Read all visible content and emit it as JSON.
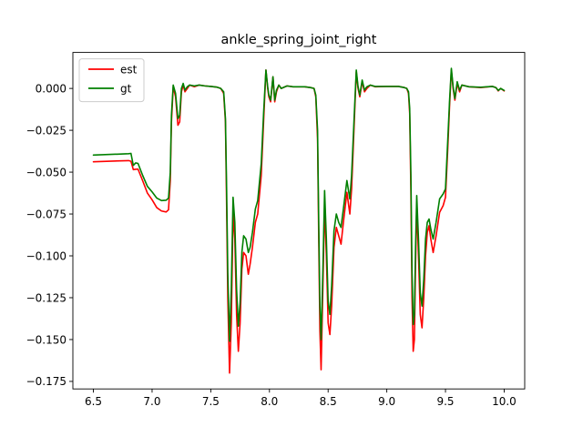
{
  "chart_data": {
    "type": "line",
    "title": "ankle_spring_joint_right",
    "xlabel": "",
    "ylabel": "",
    "xlim": [
      6.325,
      10.175
    ],
    "ylim": [
      -0.1795,
      0.0215
    ],
    "xticks": [
      6.5,
      7.0,
      7.5,
      8.0,
      8.5,
      9.0,
      9.5,
      10.0
    ],
    "xtick_labels": [
      "6.5",
      "7.0",
      "7.5",
      "8.0",
      "8.5",
      "9.0",
      "9.5",
      "10.0"
    ],
    "yticks": [
      0.0,
      -0.025,
      -0.05,
      -0.075,
      -0.1,
      -0.125,
      -0.15,
      -0.175
    ],
    "ytick_labels": [
      "0.000",
      "−0.025",
      "−0.050",
      "−0.075",
      "−0.100",
      "−0.125",
      "−0.150",
      "−0.175"
    ],
    "grid": false,
    "legend": "top-left",
    "series": [
      {
        "name": "est",
        "color": "#ff0000",
        "points": [
          [
            6.5,
            -0.0438
          ],
          [
            6.8,
            -0.0431
          ],
          [
            6.82,
            -0.0435
          ],
          [
            6.84,
            -0.0485
          ],
          [
            6.86,
            -0.0483
          ],
          [
            6.88,
            -0.0482
          ],
          [
            6.92,
            -0.0552
          ],
          [
            6.96,
            -0.0625
          ],
          [
            7.0,
            -0.0665
          ],
          [
            7.04,
            -0.0712
          ],
          [
            7.08,
            -0.0732
          ],
          [
            7.12,
            -0.0738
          ],
          [
            7.14,
            -0.0725
          ],
          [
            7.155,
            -0.055
          ],
          [
            7.165,
            -0.02
          ],
          [
            7.18,
            0.001
          ],
          [
            7.2,
            -0.005
          ],
          [
            7.22,
            -0.022
          ],
          [
            7.235,
            -0.02
          ],
          [
            7.25,
            -0.002
          ],
          [
            7.265,
            0.002
          ],
          [
            7.28,
            -0.002
          ],
          [
            7.3,
            0.0
          ],
          [
            7.32,
            0.002
          ],
          [
            7.36,
            0.001
          ],
          [
            7.4,
            0.002
          ],
          [
            7.45,
            0.0015
          ],
          [
            7.5,
            0.0012
          ],
          [
            7.55,
            0.0008
          ],
          [
            7.585,
            0.0
          ],
          [
            7.61,
            -0.003
          ],
          [
            7.625,
            -0.02
          ],
          [
            7.635,
            -0.07
          ],
          [
            7.645,
            -0.125
          ],
          [
            7.66,
            -0.17
          ],
          [
            7.675,
            -0.14
          ],
          [
            7.69,
            -0.075
          ],
          [
            7.705,
            -0.09
          ],
          [
            7.72,
            -0.135
          ],
          [
            7.735,
            -0.157
          ],
          [
            7.75,
            -0.14
          ],
          [
            7.765,
            -0.108
          ],
          [
            7.78,
            -0.098
          ],
          [
            7.8,
            -0.1
          ],
          [
            7.82,
            -0.111
          ],
          [
            7.835,
            -0.105
          ],
          [
            7.855,
            -0.095
          ],
          [
            7.88,
            -0.08
          ],
          [
            7.9,
            -0.075
          ],
          [
            7.93,
            -0.052
          ],
          [
            7.95,
            -0.02
          ],
          [
            7.97,
            0.011
          ],
          [
            7.985,
            0.0
          ],
          [
            7.995,
            -0.005
          ],
          [
            8.01,
            -0.008
          ],
          [
            8.03,
            0.007
          ],
          [
            8.045,
            -0.008
          ],
          [
            8.06,
            -0.002
          ],
          [
            8.08,
            0.002
          ],
          [
            8.1,
            0.0
          ],
          [
            8.15,
            0.0015
          ],
          [
            8.2,
            0.001
          ],
          [
            8.3,
            0.001
          ],
          [
            8.35,
            0.0005
          ],
          [
            8.38,
            0.0
          ],
          [
            8.395,
            -0.005
          ],
          [
            8.41,
            -0.03
          ],
          [
            8.42,
            -0.09
          ],
          [
            8.43,
            -0.145
          ],
          [
            8.44,
            -0.168
          ],
          [
            8.455,
            -0.12
          ],
          [
            8.47,
            -0.07
          ],
          [
            8.485,
            -0.1
          ],
          [
            8.5,
            -0.14
          ],
          [
            8.515,
            -0.147
          ],
          [
            8.53,
            -0.13
          ],
          [
            8.55,
            -0.095
          ],
          [
            8.57,
            -0.083
          ],
          [
            8.59,
            -0.088
          ],
          [
            8.61,
            -0.093
          ],
          [
            8.63,
            -0.08
          ],
          [
            8.66,
            -0.062
          ],
          [
            8.685,
            -0.075
          ],
          [
            8.7,
            -0.06
          ],
          [
            8.72,
            -0.025
          ],
          [
            8.74,
            0.01
          ],
          [
            8.755,
            0.0
          ],
          [
            8.77,
            -0.005
          ],
          [
            8.79,
            0.004
          ],
          [
            8.81,
            -0.002
          ],
          [
            8.83,
            0.0
          ],
          [
            8.86,
            0.002
          ],
          [
            8.9,
            0.001
          ],
          [
            9.0,
            0.0012
          ],
          [
            9.1,
            0.0012
          ],
          [
            9.15,
            0.0005
          ],
          [
            9.17,
            0.0
          ],
          [
            9.185,
            -0.003
          ],
          [
            9.195,
            -0.015
          ],
          [
            9.205,
            -0.06
          ],
          [
            9.215,
            -0.125
          ],
          [
            9.225,
            -0.157
          ],
          [
            9.235,
            -0.15
          ],
          [
            9.245,
            -0.105
          ],
          [
            9.255,
            -0.07
          ],
          [
            9.27,
            -0.1
          ],
          [
            9.285,
            -0.135
          ],
          [
            9.3,
            -0.143
          ],
          [
            9.315,
            -0.125
          ],
          [
            9.33,
            -0.1
          ],
          [
            9.345,
            -0.086
          ],
          [
            9.36,
            -0.082
          ],
          [
            9.375,
            -0.09
          ],
          [
            9.395,
            -0.098
          ],
          [
            9.42,
            -0.088
          ],
          [
            9.45,
            -0.074
          ],
          [
            9.48,
            -0.07
          ],
          [
            9.5,
            -0.065
          ],
          [
            9.52,
            -0.035
          ],
          [
            9.535,
            -0.01
          ],
          [
            9.55,
            0.011
          ],
          [
            9.565,
            0.0
          ],
          [
            9.58,
            -0.007
          ],
          [
            9.6,
            0.003
          ],
          [
            9.62,
            -0.002
          ],
          [
            9.64,
            0.002
          ],
          [
            9.7,
            0.001
          ],
          [
            9.8,
            0.0005
          ],
          [
            9.9,
            0.0012
          ],
          [
            9.93,
            0.0005
          ],
          [
            9.95,
            -0.0015
          ],
          [
            9.97,
            0.0
          ],
          [
            10.0,
            -0.0015
          ]
        ]
      },
      {
        "name": "gt",
        "color": "#008000",
        "points": [
          [
            6.5,
            -0.0398
          ],
          [
            6.8,
            -0.039
          ],
          [
            6.82,
            -0.0388
          ],
          [
            6.84,
            -0.046
          ],
          [
            6.86,
            -0.0445
          ],
          [
            6.88,
            -0.0448
          ],
          [
            6.92,
            -0.052
          ],
          [
            6.96,
            -0.0585
          ],
          [
            7.0,
            -0.0618
          ],
          [
            7.04,
            -0.0655
          ],
          [
            7.08,
            -0.067
          ],
          [
            7.12,
            -0.0668
          ],
          [
            7.14,
            -0.0655
          ],
          [
            7.155,
            -0.05
          ],
          [
            7.165,
            -0.016
          ],
          [
            7.18,
            0.002
          ],
          [
            7.2,
            -0.003
          ],
          [
            7.22,
            -0.018
          ],
          [
            7.235,
            -0.016
          ],
          [
            7.25,
            0.0
          ],
          [
            7.265,
            0.003
          ],
          [
            7.28,
            -0.001
          ],
          [
            7.3,
            0.001
          ],
          [
            7.32,
            0.002
          ],
          [
            7.36,
            0.0015
          ],
          [
            7.4,
            0.002
          ],
          [
            7.45,
            0.0015
          ],
          [
            7.5,
            0.0012
          ],
          [
            7.55,
            0.0008
          ],
          [
            7.585,
            0.0
          ],
          [
            7.61,
            -0.002
          ],
          [
            7.625,
            -0.018
          ],
          [
            7.635,
            -0.06
          ],
          [
            7.645,
            -0.11
          ],
          [
            7.66,
            -0.151
          ],
          [
            7.675,
            -0.12
          ],
          [
            7.69,
            -0.065
          ],
          [
            7.705,
            -0.08
          ],
          [
            7.72,
            -0.12
          ],
          [
            7.735,
            -0.142
          ],
          [
            7.75,
            -0.128
          ],
          [
            7.765,
            -0.098
          ],
          [
            7.78,
            -0.088
          ],
          [
            7.8,
            -0.09
          ],
          [
            7.82,
            -0.098
          ],
          [
            7.835,
            -0.095
          ],
          [
            7.855,
            -0.086
          ],
          [
            7.88,
            -0.072
          ],
          [
            7.9,
            -0.067
          ],
          [
            7.93,
            -0.045
          ],
          [
            7.95,
            -0.015
          ],
          [
            7.97,
            0.011
          ],
          [
            7.985,
            0.001
          ],
          [
            7.995,
            -0.004
          ],
          [
            8.01,
            -0.007
          ],
          [
            8.03,
            0.007
          ],
          [
            8.045,
            -0.007
          ],
          [
            8.06,
            -0.001
          ],
          [
            8.08,
            0.002
          ],
          [
            8.1,
            0.0
          ],
          [
            8.15,
            0.0015
          ],
          [
            8.2,
            0.001
          ],
          [
            8.3,
            0.001
          ],
          [
            8.35,
            0.0005
          ],
          [
            8.38,
            0.0
          ],
          [
            8.395,
            -0.004
          ],
          [
            8.41,
            -0.025
          ],
          [
            8.42,
            -0.08
          ],
          [
            8.43,
            -0.13
          ],
          [
            8.44,
            -0.15
          ],
          [
            8.455,
            -0.11
          ],
          [
            8.47,
            -0.061
          ],
          [
            8.485,
            -0.09
          ],
          [
            8.5,
            -0.127
          ],
          [
            8.515,
            -0.135
          ],
          [
            8.53,
            -0.118
          ],
          [
            8.55,
            -0.085
          ],
          [
            8.57,
            -0.075
          ],
          [
            8.59,
            -0.08
          ],
          [
            8.61,
            -0.083
          ],
          [
            8.63,
            -0.072
          ],
          [
            8.66,
            -0.055
          ],
          [
            8.685,
            -0.066
          ],
          [
            8.7,
            -0.052
          ],
          [
            8.72,
            -0.02
          ],
          [
            8.74,
            0.011
          ],
          [
            8.755,
            0.001
          ],
          [
            8.77,
            -0.004
          ],
          [
            8.79,
            0.005
          ],
          [
            8.81,
            -0.001
          ],
          [
            8.83,
            0.001
          ],
          [
            8.86,
            0.002
          ],
          [
            8.9,
            0.0012
          ],
          [
            9.0,
            0.0012
          ],
          [
            9.1,
            0.0012
          ],
          [
            9.15,
            0.0005
          ],
          [
            9.17,
            0.0
          ],
          [
            9.185,
            -0.002
          ],
          [
            9.195,
            -0.012
          ],
          [
            9.205,
            -0.05
          ],
          [
            9.215,
            -0.11
          ],
          [
            9.225,
            -0.141
          ],
          [
            9.235,
            -0.135
          ],
          [
            9.245,
            -0.095
          ],
          [
            9.255,
            -0.064
          ],
          [
            9.27,
            -0.09
          ],
          [
            9.285,
            -0.122
          ],
          [
            9.3,
            -0.13
          ],
          [
            9.315,
            -0.114
          ],
          [
            9.33,
            -0.09
          ],
          [
            9.345,
            -0.08
          ],
          [
            9.36,
            -0.078
          ],
          [
            9.375,
            -0.084
          ],
          [
            9.395,
            -0.09
          ],
          [
            9.42,
            -0.08
          ],
          [
            9.45,
            -0.066
          ],
          [
            9.48,
            -0.063
          ],
          [
            9.5,
            -0.06
          ],
          [
            9.52,
            -0.03
          ],
          [
            9.535,
            -0.007
          ],
          [
            9.55,
            0.012
          ],
          [
            9.565,
            0.001
          ],
          [
            9.58,
            -0.006
          ],
          [
            9.6,
            0.004
          ],
          [
            9.62,
            -0.001
          ],
          [
            9.64,
            0.002
          ],
          [
            9.7,
            0.001
          ],
          [
            9.8,
            0.0007
          ],
          [
            9.9,
            0.0012
          ],
          [
            9.93,
            0.0005
          ],
          [
            9.95,
            -0.0012
          ],
          [
            9.97,
            0.0
          ],
          [
            10.0,
            -0.0012
          ]
        ]
      }
    ]
  }
}
